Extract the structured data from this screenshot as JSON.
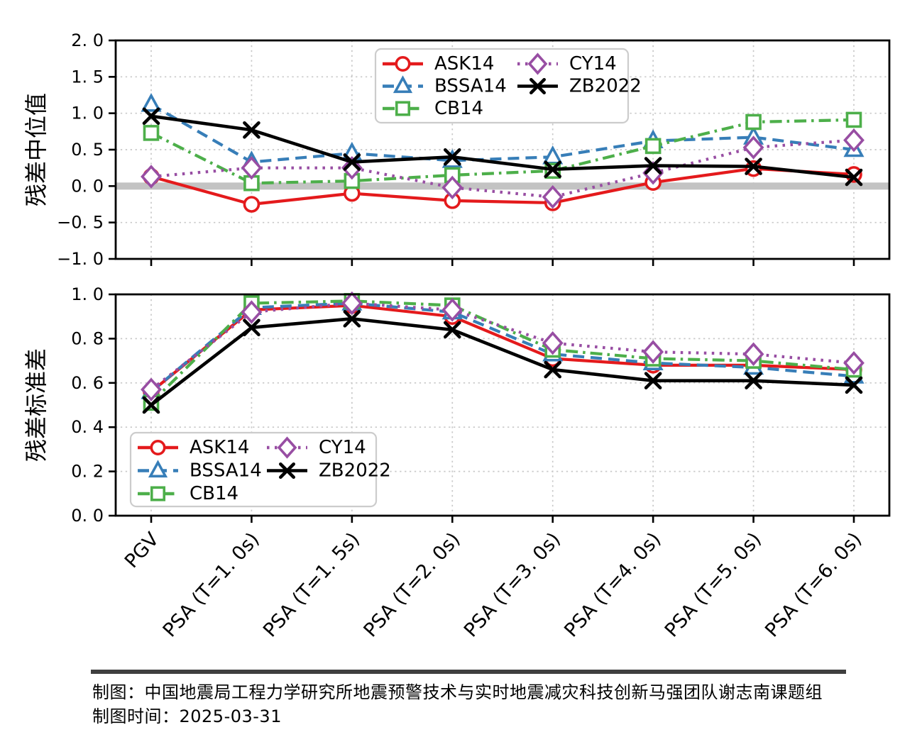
{
  "page": {
    "background": "#ffffff"
  },
  "palette": {
    "ASK14": "#e41a1c",
    "BSSA14": "#377eb8",
    "CB14": "#4daf4a",
    "CY14": "#984ea3",
    "ZB2022": "#000000",
    "grid": "#c8c8c8",
    "zero_band": "#c3c3c3",
    "spine": "#000000",
    "legend_border": "#cccccc",
    "footer_rule": "#3f3f3f"
  },
  "series_styles": [
    {
      "name": "ASK14",
      "color_key": "ASK14",
      "line": "solid",
      "marker": "circle"
    },
    {
      "name": "BSSA14",
      "color_key": "BSSA14",
      "line": "dashed",
      "marker": "triangle"
    },
    {
      "name": "CB14",
      "color_key": "CB14",
      "line": "dashdot",
      "marker": "square"
    },
    {
      "name": "CY14",
      "color_key": "CY14",
      "line": "dotted",
      "marker": "diamond"
    },
    {
      "name": "ZB2022",
      "color_key": "ZB2022",
      "line": "solid",
      "marker": "x"
    }
  ],
  "chart_data": [
    {
      "type": "line",
      "title": "",
      "ylabel": "残差中位值",
      "xlabel": "",
      "ylim": [
        -1.0,
        2.0
      ],
      "yticks": [
        2.0,
        1.5,
        1.0,
        0.5,
        0.0,
        -0.5,
        -1.0
      ],
      "ytick_labels": [
        "2. 0",
        "1. 5",
        "1. 0",
        "0. 5",
        "0. 0",
        "−0. 5",
        "−1. 0"
      ],
      "grid": true,
      "zero_band": true,
      "legend_position": "upper-center-right",
      "categories": [
        "PGV",
        "PSA (T=1. 0s)",
        "PSA (T=1. 5s)",
        "PSA (T=2. 0s)",
        "PSA (T=3. 0s)",
        "PSA (T=4. 0s)",
        "PSA (T=5. 0s)",
        "PSA (T=6. 0s)"
      ],
      "series": [
        {
          "name": "ASK14",
          "values": [
            0.13,
            -0.25,
            -0.1,
            -0.2,
            -0.23,
            0.05,
            0.24,
            0.16
          ]
        },
        {
          "name": "BSSA14",
          "values": [
            1.12,
            0.33,
            0.45,
            0.35,
            0.4,
            0.62,
            0.67,
            0.5
          ]
        },
        {
          "name": "CB14",
          "values": [
            0.73,
            0.04,
            0.07,
            0.15,
            0.21,
            0.55,
            0.88,
            0.91
          ]
        },
        {
          "name": "CY14",
          "values": [
            0.13,
            0.25,
            0.25,
            -0.02,
            -0.15,
            0.18,
            0.53,
            0.63
          ]
        },
        {
          "name": "ZB2022",
          "values": [
            0.96,
            0.77,
            0.33,
            0.4,
            0.23,
            0.28,
            0.27,
            0.12
          ]
        }
      ]
    },
    {
      "type": "line",
      "title": "",
      "ylabel": "残差标准差",
      "xlabel": "",
      "ylim": [
        0.0,
        1.0
      ],
      "yticks": [
        1.0,
        0.8,
        0.6,
        0.4,
        0.2,
        0.0
      ],
      "ytick_labels": [
        "1. 0",
        "0. 8",
        "0. 6",
        "0. 4",
        "0. 2",
        "0. 0"
      ],
      "grid": true,
      "zero_band": false,
      "legend_position": "lower-left",
      "categories": [
        "PGV",
        "PSA (T=1. 0s)",
        "PSA (T=1. 5s)",
        "PSA (T=2. 0s)",
        "PSA (T=3. 0s)",
        "PSA (T=4. 0s)",
        "PSA (T=5. 0s)",
        "PSA (T=6. 0s)"
      ],
      "series": [
        {
          "name": "ASK14",
          "values": [
            0.56,
            0.93,
            0.95,
            0.9,
            0.71,
            0.68,
            0.68,
            0.66
          ]
        },
        {
          "name": "BSSA14",
          "values": [
            0.56,
            0.94,
            0.96,
            0.92,
            0.73,
            0.69,
            0.67,
            0.63
          ]
        },
        {
          "name": "CB14",
          "values": [
            0.51,
            0.96,
            0.97,
            0.95,
            0.75,
            0.71,
            0.7,
            0.66
          ]
        },
        {
          "name": "CY14",
          "values": [
            0.57,
            0.92,
            0.96,
            0.93,
            0.78,
            0.74,
            0.73,
            0.69
          ]
        },
        {
          "name": "ZB2022",
          "values": [
            0.5,
            0.85,
            0.89,
            0.84,
            0.66,
            0.61,
            0.61,
            0.59
          ]
        }
      ]
    }
  ],
  "footer": {
    "credit": "制图：中国地震局工程力学研究所地震预警技术与实时地震减灾科技创新马强团队谢志南课题组",
    "date": "制图时间：2025-03-31"
  }
}
